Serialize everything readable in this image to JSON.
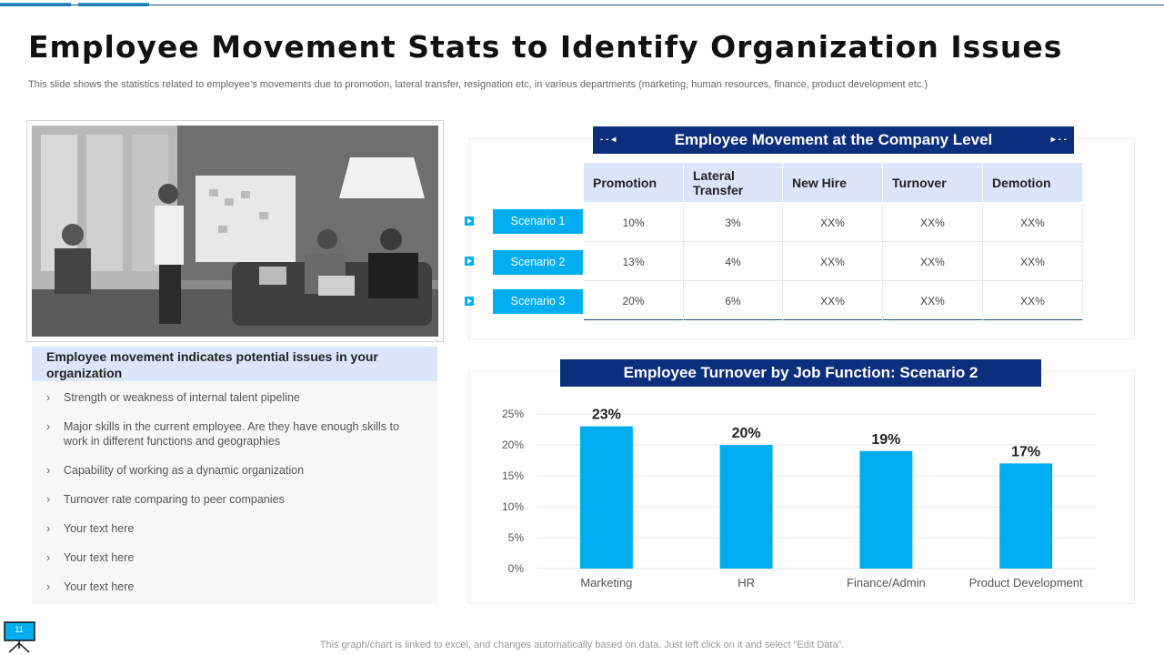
{
  "title": "Employee Movement Stats to Identify Organization Issues",
  "subtitle": "This slide shows the statistics related to employee’s movements due to promotion, lateral transfer, resignation etc, in various departments (marketing, human resources, finance, product development etc.)",
  "left_panel": {
    "heading": "Employee movement indicates potential issues in your organization",
    "bullets": [
      "Strength or weakness of internal talent pipeline",
      "Major skills in the current employee. Are they have  enough skills to work in different  functions and geographies",
      "Capability of working as a dynamic organization",
      "Turnover  rate comparing to peer companies",
      "Your text here",
      "Your text here",
      "Your text here"
    ]
  },
  "table": {
    "title": "Employee Movement at the Company Level",
    "headers": [
      "Promotion",
      "Lateral Transfer",
      "New Hire",
      "Turnover",
      "Demotion"
    ],
    "rows": [
      {
        "label": "Scenario 1",
        "cells": [
          "10%",
          "3%",
          "XX%",
          "XX%",
          "XX%"
        ]
      },
      {
        "label": "Scenario 2",
        "cells": [
          "13%",
          "4%",
          "XX%",
          "XX%",
          "XX%"
        ]
      },
      {
        "label": "Scenario 3",
        "cells": [
          "20%",
          "6%",
          "XX%",
          "XX%",
          "XX%"
        ]
      }
    ]
  },
  "chart_data": {
    "type": "bar",
    "title": "Employee Turnover by Job Function: Scenario 2",
    "categories": [
      "Marketing",
      "HR",
      "Finance/Admin",
      "Product Development"
    ],
    "values": [
      23,
      20,
      19,
      17
    ],
    "data_labels": [
      "23%",
      "20%",
      "19%",
      "17%"
    ],
    "yticks": [
      "0%",
      "5%",
      "10%",
      "15%",
      "20%",
      "25%"
    ],
    "ylim": [
      0,
      25
    ],
    "xlabel": "",
    "ylabel": "",
    "bar_color": "#00aeef",
    "grid": true
  },
  "footer_note": "This graph/chart is linked to excel,  and changes automatically based on data. Just left click on it and select “Edit Data”.",
  "slide_number": "11",
  "colors": {
    "accent": "#00aeef",
    "navy": "#0b2e7d",
    "header_bg": "#dbe6fb"
  }
}
